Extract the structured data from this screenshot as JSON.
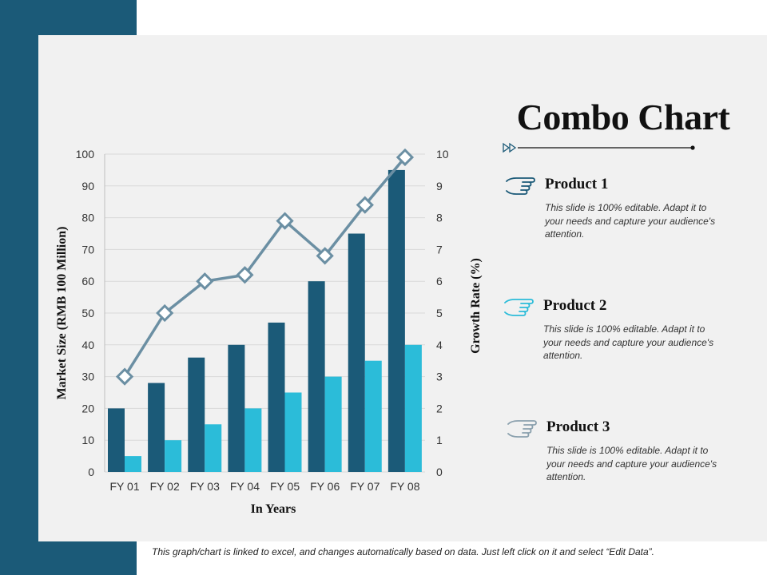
{
  "slide": {
    "title": "Combo Chart",
    "footer": "This graph/chart is linked to excel, and changes automatically based on data. Just left click on it and select “Edit Data”.",
    "products": [
      {
        "name": "Product 1",
        "description": "This slide is 100% editable. Adapt it to your needs and capture your audience's attention."
      },
      {
        "name": "Product 2",
        "description": "This slide is 100% editable. Adapt it to your needs and capture your audience's attention."
      },
      {
        "name": "Product 3",
        "description": "This slide is 100% editable. Adapt it to your needs and capture your audience's attention."
      }
    ],
    "colors": {
      "sidebar": "#1b5a78",
      "panel": "#f1f1f1",
      "bar_dark": "#1b5a78",
      "bar_light": "#2bbcd9",
      "line": "#6b8fa3",
      "hand_dark": "#1b5a78",
      "hand_light": "#2bbcd9",
      "hand_gray": "#8aa0ad"
    },
    "icons": [
      "pointing-hand-icon",
      "double-arrow-icon"
    ]
  },
  "chart_data": {
    "type": "bar",
    "combo": true,
    "categories": [
      "FY 01",
      "FY 02",
      "FY 03",
      "FY 04",
      "FY 05",
      "FY 06",
      "FY 07",
      "FY 08"
    ],
    "series": [
      {
        "type": "bar",
        "axis": "left",
        "values": [
          20,
          28,
          36,
          40,
          47,
          60,
          75,
          95
        ]
      },
      {
        "type": "bar",
        "axis": "left",
        "values": [
          5,
          10,
          15,
          20,
          25,
          30,
          35,
          40
        ]
      },
      {
        "type": "line",
        "axis": "right",
        "values": [
          3,
          5,
          6,
          6.2,
          7.9,
          6.8,
          8.4,
          9.9
        ]
      }
    ],
    "xlabel": "In Years",
    "ylabel": "Market Size (RMB 100 Million)",
    "y2label": "Growth Rate (%)",
    "ylim": [
      0,
      100
    ],
    "y2lim": [
      0,
      10
    ],
    "yticks": [
      "0",
      "10",
      "20",
      "30",
      "40",
      "50",
      "60",
      "70",
      "80",
      "90",
      "100"
    ],
    "y2ticks": [
      "0",
      "1",
      "2",
      "3",
      "4",
      "5",
      "6",
      "7",
      "8",
      "9",
      "10"
    ],
    "grid": true,
    "legend": "none"
  }
}
